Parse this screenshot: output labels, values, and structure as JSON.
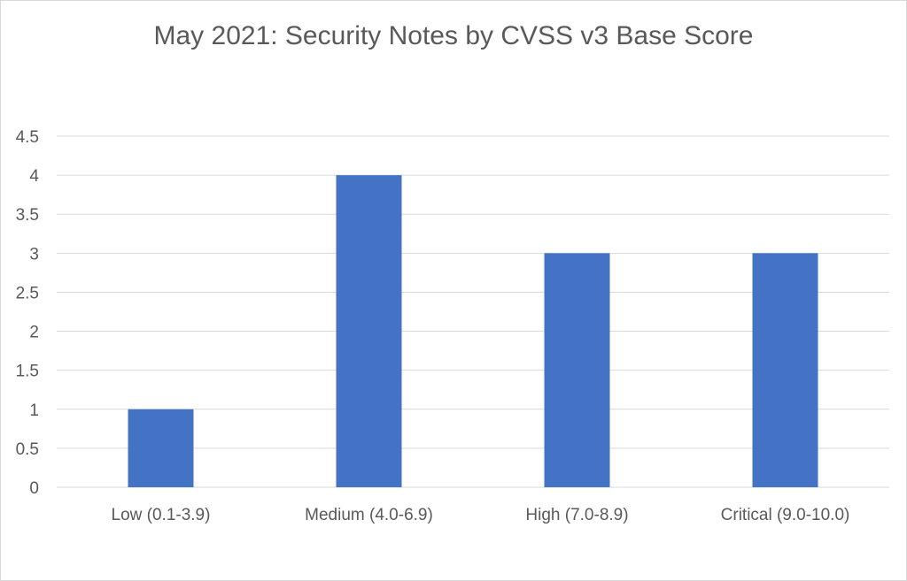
{
  "chart_data": {
    "type": "bar",
    "title": "May 2021: Security Notes by CVSS v3 Base Score",
    "categories": [
      "Low (0.1-3.9)",
      "Medium (4.0-6.9)",
      "High (7.0-8.9)",
      "Critical (9.0-10.0)"
    ],
    "values": [
      1,
      4,
      3,
      3
    ],
    "ylim": [
      0,
      4.5
    ],
    "yticks": [
      "0",
      "0.5",
      "1",
      "1.5",
      "2",
      "2.5",
      "3",
      "3.5",
      "4",
      "4.5"
    ],
    "grid": true,
    "legend": "none",
    "bar_color": "#4472c4",
    "grid_color": "#d9d9d9"
  }
}
